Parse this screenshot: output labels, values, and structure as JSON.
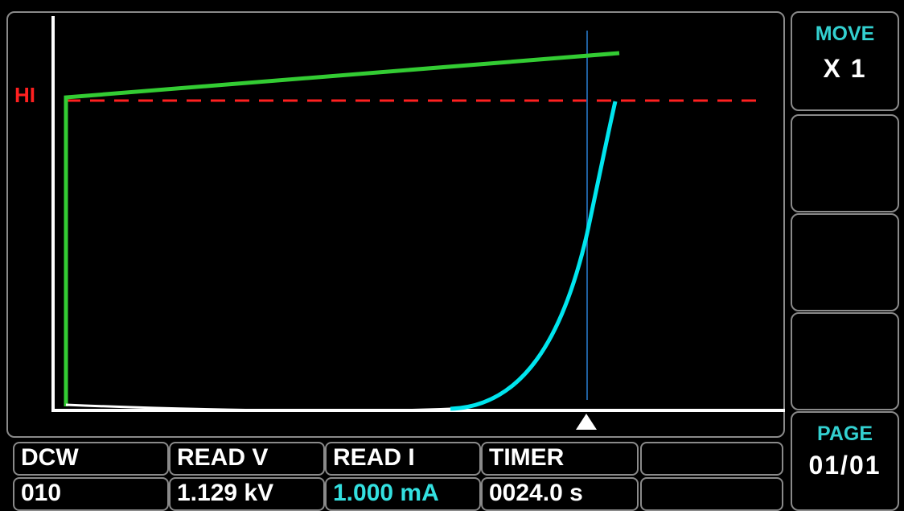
{
  "graph": {
    "hi_label": "HI"
  },
  "softkeys": [
    {
      "title": "MOVE",
      "value": "X  1"
    },
    {
      "title": "",
      "value": ""
    },
    {
      "title": "",
      "value": ""
    },
    {
      "title": "",
      "value": ""
    },
    {
      "title": "PAGE",
      "value": "01/01"
    }
  ],
  "status": {
    "headers": [
      "DCW",
      "READ V",
      "READ I",
      "TIMER",
      ""
    ],
    "values": [
      "010",
      "1.129 kV",
      "1.000 mA",
      "0024.0 s",
      ""
    ]
  },
  "colors": {
    "background": "#000000",
    "border": "#8a8a8a",
    "axis": "#ffffff",
    "voltage_trace": "#33cc33",
    "current_trace": "#00e5ee",
    "hi_limit": "#ff2020",
    "cursor": "#1f5f9f",
    "accent_text": "#33d0d0"
  }
}
